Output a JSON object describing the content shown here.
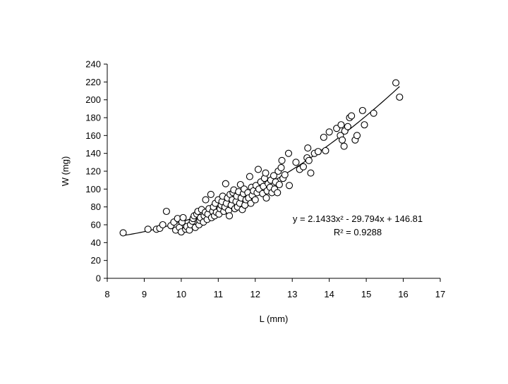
{
  "chart_data": {
    "type": "scatter",
    "title": "",
    "xlabel": "L (mm)",
    "ylabel": "W (mg)",
    "xlim": [
      8,
      17
    ],
    "ylim": [
      0,
      240
    ],
    "x_ticks": [
      "8",
      "9",
      "10",
      "11",
      "12",
      "13",
      "14",
      "15",
      "16",
      "17"
    ],
    "y_ticks": [
      "0",
      "20",
      "40",
      "60",
      "80",
      "100",
      "120",
      "140",
      "160",
      "180",
      "200",
      "220",
      "240"
    ],
    "grid": false,
    "legend": "none",
    "trendline": {
      "kind": "polynomial",
      "coefficients": [
        2.1433,
        -29.794,
        146.81
      ],
      "x_range": [
        8.4,
        15.9
      ],
      "equation_label": "y = 2.1433x² - 29.794x + 146.81",
      "r2_label": "R² = 0.9288"
    },
    "series": [
      {
        "marker": "open-circle",
        "points": [
          [
            8.43,
            51
          ],
          [
            9.1,
            55
          ],
          [
            9.33,
            55
          ],
          [
            9.42,
            56
          ],
          [
            9.5,
            60
          ],
          [
            9.6,
            75
          ],
          [
            9.72,
            59
          ],
          [
            9.8,
            63
          ],
          [
            9.85,
            54
          ],
          [
            9.9,
            67
          ],
          [
            9.95,
            57
          ],
          [
            10.0,
            52
          ],
          [
            10.02,
            63
          ],
          [
            10.05,
            68
          ],
          [
            10.12,
            55
          ],
          [
            10.15,
            58
          ],
          [
            10.22,
            54
          ],
          [
            10.25,
            60
          ],
          [
            10.3,
            64
          ],
          [
            10.32,
            67
          ],
          [
            10.35,
            70
          ],
          [
            10.38,
            57
          ],
          [
            10.42,
            72
          ],
          [
            10.45,
            75
          ],
          [
            10.48,
            60
          ],
          [
            10.5,
            65
          ],
          [
            10.52,
            68
          ],
          [
            10.55,
            77
          ],
          [
            10.6,
            63
          ],
          [
            10.62,
            70
          ],
          [
            10.65,
            74
          ],
          [
            10.66,
            88
          ],
          [
            10.7,
            66
          ],
          [
            10.72,
            72
          ],
          [
            10.75,
            78
          ],
          [
            10.8,
            94
          ],
          [
            10.82,
            68
          ],
          [
            10.85,
            75
          ],
          [
            10.87,
            80
          ],
          [
            10.9,
            70
          ],
          [
            10.92,
            84
          ],
          [
            10.95,
            74
          ],
          [
            11.0,
            88
          ],
          [
            11.02,
            72
          ],
          [
            11.05,
            78
          ],
          [
            11.08,
            82
          ],
          [
            11.1,
            86
          ],
          [
            11.12,
            92
          ],
          [
            11.15,
            75
          ],
          [
            11.18,
            80
          ],
          [
            11.2,
            106
          ],
          [
            11.22,
            84
          ],
          [
            11.25,
            90
          ],
          [
            11.28,
            76
          ],
          [
            11.3,
            70
          ],
          [
            11.32,
            94
          ],
          [
            11.35,
            82
          ],
          [
            11.38,
            88
          ],
          [
            11.4,
            96
          ],
          [
            11.42,
            99
          ],
          [
            11.45,
            78
          ],
          [
            11.48,
            86
          ],
          [
            11.5,
            92
          ],
          [
            11.52,
            80
          ],
          [
            11.55,
            97
          ],
          [
            11.58,
            84
          ],
          [
            11.6,
            105
          ],
          [
            11.62,
            90
          ],
          [
            11.65,
            77
          ],
          [
            11.68,
            95
          ],
          [
            11.7,
            100
          ],
          [
            11.72,
            82
          ],
          [
            11.75,
            88
          ],
          [
            11.8,
            96
          ],
          [
            11.82,
            90
          ],
          [
            11.85,
            114
          ],
          [
            11.88,
            84
          ],
          [
            11.9,
            102
          ],
          [
            11.92,
            93
          ],
          [
            11.95,
            98
          ],
          [
            12.0,
            88
          ],
          [
            12.02,
            104
          ],
          [
            12.05,
            96
          ],
          [
            12.08,
            122
          ],
          [
            12.1,
            100
          ],
          [
            12.15,
            108
          ],
          [
            12.2,
            95
          ],
          [
            12.22,
            103
          ],
          [
            12.25,
            112
          ],
          [
            12.28,
            118
          ],
          [
            12.3,
            90
          ],
          [
            12.32,
            98
          ],
          [
            12.35,
            106
          ],
          [
            12.4,
            102
          ],
          [
            12.42,
            110
          ],
          [
            12.45,
            96
          ],
          [
            12.5,
            115
          ],
          [
            12.52,
            100
          ],
          [
            12.55,
            108
          ],
          [
            12.6,
            96
          ],
          [
            12.62,
            120
          ],
          [
            12.65,
            105
          ],
          [
            12.7,
            124
          ],
          [
            12.72,
            132
          ],
          [
            12.75,
            112
          ],
          [
            12.8,
            116
          ],
          [
            12.9,
            140
          ],
          [
            12.92,
            104
          ],
          [
            13.1,
            130
          ],
          [
            13.2,
            122
          ],
          [
            13.3,
            125
          ],
          [
            13.4,
            135
          ],
          [
            13.42,
            146
          ],
          [
            13.45,
            132
          ],
          [
            13.5,
            118
          ],
          [
            13.6,
            140
          ],
          [
            13.7,
            142
          ],
          [
            13.85,
            158
          ],
          [
            13.9,
            143
          ],
          [
            14.0,
            164
          ],
          [
            14.2,
            168
          ],
          [
            14.3,
            160
          ],
          [
            14.32,
            172
          ],
          [
            14.35,
            155
          ],
          [
            14.4,
            148
          ],
          [
            14.42,
            165
          ],
          [
            14.5,
            170
          ],
          [
            14.55,
            180
          ],
          [
            14.6,
            182
          ],
          [
            14.7,
            155
          ],
          [
            14.75,
            160
          ],
          [
            14.9,
            188
          ],
          [
            14.95,
            172
          ],
          [
            15.2,
            185
          ],
          [
            15.8,
            219
          ],
          [
            15.9,
            203
          ]
        ]
      }
    ]
  }
}
